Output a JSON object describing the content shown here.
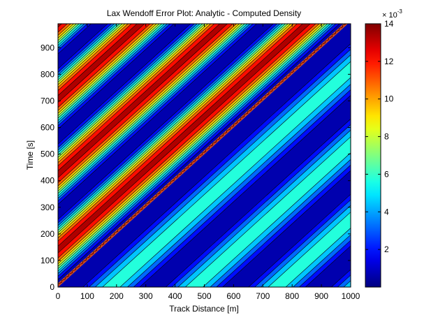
{
  "chart_data": {
    "type": "heatmap",
    "subtype": "filled-contour",
    "title": "Lax Wendoff Error Plot: Analytic - Computed Density",
    "xlabel": "Track Distance [m]",
    "ylabel": "Time [s]",
    "xlim": [
      0,
      1000
    ],
    "ylim": [
      0,
      990
    ],
    "x_ticks": [
      0,
      100,
      200,
      300,
      400,
      500,
      600,
      700,
      800,
      900,
      1000
    ],
    "y_ticks": [
      0,
      100,
      200,
      300,
      400,
      500,
      600,
      700,
      800,
      900
    ],
    "colorbar": {
      "label_scale": "× 10",
      "label_exponent": "-3",
      "range": [
        0,
        0.014
      ],
      "ticks": [
        2,
        4,
        6,
        8,
        10,
        12,
        14
      ],
      "colormap": "jet",
      "levels": 11
    },
    "grid": false,
    "wavefront": {
      "speed_m_per_s": 1.0,
      "through": [
        0,
        0
      ]
    },
    "region_above_front": {
      "description_values": "stripes parallel to the front, oscillating between 0 and ~0.013",
      "amplitude_range": [
        0,
        0.013
      ],
      "stripe_period_m": 283
    },
    "region_below_front": {
      "amplitude_range": [
        0,
        0.0057
      ],
      "stripe_period_m": 283
    },
    "colors": {
      "jet_low": "#000080",
      "jet_high": "#800000",
      "axes_bg": "#ffffff",
      "contour_line": "#000000"
    }
  }
}
